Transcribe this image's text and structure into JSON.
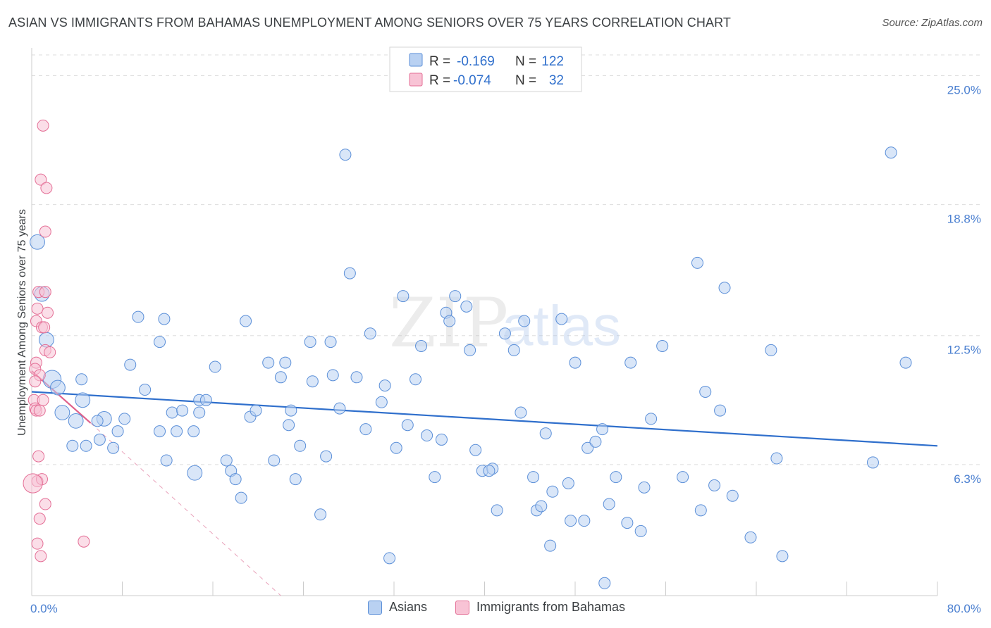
{
  "title": "ASIAN VS IMMIGRANTS FROM BAHAMAS UNEMPLOYMENT AMONG SENIORS OVER 75 YEARS CORRELATION CHART",
  "source": "Source: ZipAtlas.com",
  "watermark": {
    "zip": "ZIP",
    "atlas": "atlas"
  },
  "stats_legend": [
    {
      "r_label": "R =",
      "r_value": "-0.169",
      "n_label": "N =",
      "n_value": "122",
      "color": "#5b8fd8",
      "fill": "#b9d1f2"
    },
    {
      "r_label": "R =",
      "r_value": "-0.074",
      "n_label": "N =",
      "n_value": " 32",
      "color": "#e46f96",
      "fill": "#f8c3d5"
    }
  ],
  "bottom_legend": [
    {
      "label": "Asians",
      "fill": "#b9d1f2",
      "stroke": "#5b8fd8"
    },
    {
      "label": "Immigrants from Bahamas",
      "fill": "#f8c3d5",
      "stroke": "#e46f96"
    }
  ],
  "chart_data": {
    "type": "scatter",
    "ylabel": "Unemployment Among Seniors over 75 years",
    "xlabel": "",
    "xlim": [
      0,
      80
    ],
    "ylim": [
      0,
      26.2
    ],
    "x_tick_labels": {
      "min": "0.0%",
      "max": "80.0%"
    },
    "y_ticks": [
      {
        "value": 6.3,
        "label": "6.3%"
      },
      {
        "value": 12.5,
        "label": "12.5%"
      },
      {
        "value": 18.8,
        "label": "18.8%"
      },
      {
        "value": 25.0,
        "label": "25.0%"
      }
    ],
    "colors": {
      "asians": "#5b8fd8",
      "bahamas": "#e46f96",
      "asians_line": "#2f6fcc",
      "bahamas_line": "#e0608a"
    },
    "series": [
      {
        "name": "Asians",
        "trend": {
          "x": [
            0,
            80
          ],
          "y": [
            9.8,
            7.2
          ]
        },
        "points": [
          [
            0.5,
            17.0,
            1.3
          ],
          [
            0.9,
            14.5,
            1.3
          ],
          [
            1.3,
            12.3,
            1.3
          ],
          [
            1.8,
            10.4,
            1.6
          ],
          [
            4.4,
            10.4,
            1.0
          ],
          [
            2.3,
            10.0,
            1.3
          ],
          [
            4.5,
            9.4,
            1.3
          ],
          [
            2.7,
            8.8,
            1.3
          ],
          [
            6.4,
            8.5,
            1.3
          ],
          [
            3.9,
            8.4,
            1.3
          ],
          [
            5.8,
            8.4,
            1.0
          ],
          [
            10.0,
            9.9,
            1.0
          ],
          [
            8.7,
            11.1,
            1.0
          ],
          [
            11.3,
            12.2,
            1.0
          ],
          [
            9.4,
            13.4,
            1.0
          ],
          [
            11.7,
            13.3,
            1.0
          ],
          [
            12.4,
            8.8,
            1.0
          ],
          [
            13.3,
            8.9,
            1.0
          ],
          [
            14.3,
            7.9,
            1.0
          ],
          [
            8.2,
            8.5,
            1.0
          ],
          [
            11.3,
            7.9,
            1.0
          ],
          [
            12.8,
            7.9,
            1.0
          ],
          [
            7.6,
            7.9,
            1.0
          ],
          [
            6.0,
            7.5,
            1.0
          ],
          [
            7.2,
            7.1,
            1.0
          ],
          [
            3.6,
            7.2,
            1.0
          ],
          [
            4.8,
            7.2,
            1.0
          ],
          [
            14.8,
            9.4,
            1.0
          ],
          [
            15.4,
            9.4,
            1.0
          ],
          [
            14.8,
            8.8,
            1.0
          ],
          [
            16.2,
            11.0,
            1.0
          ],
          [
            11.9,
            6.5,
            1.0
          ],
          [
            14.4,
            5.9,
            1.3
          ],
          [
            17.2,
            6.5,
            1.0
          ],
          [
            17.6,
            6.0,
            1.0
          ],
          [
            18.0,
            5.6,
            1.0
          ],
          [
            18.5,
            4.7,
            1.0
          ],
          [
            18.9,
            13.2,
            1.0
          ],
          [
            19.3,
            8.6,
            1.0
          ],
          [
            19.8,
            8.9,
            1.0
          ],
          [
            20.9,
            11.2,
            1.0
          ],
          [
            21.4,
            6.5,
            1.0
          ],
          [
            22.0,
            10.5,
            1.0
          ],
          [
            22.4,
            11.2,
            1.0
          ],
          [
            22.7,
            8.2,
            1.0
          ],
          [
            22.9,
            8.9,
            1.0
          ],
          [
            23.3,
            5.6,
            1.0
          ],
          [
            23.7,
            7.2,
            1.0
          ],
          [
            24.6,
            12.2,
            1.0
          ],
          [
            24.8,
            10.3,
            1.0
          ],
          [
            25.5,
            3.9,
            1.0
          ],
          [
            26.0,
            6.7,
            1.0
          ],
          [
            26.4,
            12.2,
            1.0
          ],
          [
            26.6,
            10.6,
            1.0
          ],
          [
            27.2,
            9.0,
            1.0
          ],
          [
            27.7,
            21.2,
            1.0
          ],
          [
            28.1,
            15.5,
            1.0
          ],
          [
            28.7,
            10.5,
            1.0
          ],
          [
            29.5,
            8.0,
            1.0
          ],
          [
            29.9,
            12.6,
            1.0
          ],
          [
            30.9,
            9.3,
            1.0
          ],
          [
            31.2,
            10.1,
            1.0
          ],
          [
            31.6,
            1.8,
            1.0
          ],
          [
            32.2,
            7.1,
            1.0
          ],
          [
            32.8,
            14.4,
            1.0
          ],
          [
            33.2,
            8.2,
            1.0
          ],
          [
            33.9,
            10.4,
            1.0
          ],
          [
            34.4,
            12.0,
            1.0
          ],
          [
            34.9,
            7.7,
            1.0
          ],
          [
            35.6,
            5.7,
            1.0
          ],
          [
            36.2,
            7.5,
            1.0
          ],
          [
            36.6,
            13.6,
            1.0
          ],
          [
            36.9,
            13.2,
            1.0
          ],
          [
            37.4,
            14.4,
            1.0
          ],
          [
            38.4,
            13.9,
            1.0
          ],
          [
            38.7,
            11.8,
            1.0
          ],
          [
            39.2,
            7.0,
            1.0
          ],
          [
            39.8,
            6.0,
            1.0
          ],
          [
            40.7,
            6.1,
            1.0
          ],
          [
            41.1,
            4.1,
            1.0
          ],
          [
            40.4,
            6.0,
            1.0
          ],
          [
            41.8,
            12.6,
            1.0
          ],
          [
            42.6,
            11.8,
            1.0
          ],
          [
            43.2,
            8.8,
            1.0
          ],
          [
            43.5,
            13.2,
            1.0
          ],
          [
            44.3,
            5.7,
            1.0
          ],
          [
            44.6,
            4.1,
            1.0
          ],
          [
            45.0,
            4.3,
            1.0
          ],
          [
            45.4,
            7.8,
            1.0
          ],
          [
            45.8,
            2.4,
            1.0
          ],
          [
            46.0,
            5.0,
            1.0
          ],
          [
            46.8,
            13.3,
            1.0
          ],
          [
            47.4,
            5.4,
            1.0
          ],
          [
            47.6,
            3.6,
            1.0
          ],
          [
            48.0,
            11.2,
            1.0
          ],
          [
            48.8,
            3.6,
            1.0
          ],
          [
            49.1,
            7.1,
            1.0
          ],
          [
            49.8,
            7.4,
            1.0
          ],
          [
            50.4,
            8.0,
            1.0
          ],
          [
            50.6,
            0.6,
            1.0
          ],
          [
            51.0,
            4.4,
            1.0
          ],
          [
            51.6,
            5.7,
            1.0
          ],
          [
            52.6,
            3.5,
            1.0
          ],
          [
            52.9,
            11.2,
            1.0
          ],
          [
            53.8,
            3.1,
            1.0
          ],
          [
            54.1,
            5.2,
            1.0
          ],
          [
            54.7,
            8.5,
            1.0
          ],
          [
            55.7,
            12.0,
            1.0
          ],
          [
            57.5,
            5.7,
            1.0
          ],
          [
            58.8,
            16.0,
            1.0
          ],
          [
            59.1,
            4.1,
            1.0
          ],
          [
            59.5,
            9.8,
            1.0
          ],
          [
            60.3,
            5.3,
            1.0
          ],
          [
            60.8,
            8.9,
            1.0
          ],
          [
            61.2,
            14.8,
            1.0
          ],
          [
            61.9,
            4.8,
            1.0
          ],
          [
            63.5,
            2.8,
            1.0
          ],
          [
            65.3,
            11.8,
            1.0
          ],
          [
            65.8,
            6.6,
            1.0
          ],
          [
            66.3,
            1.9,
            1.0
          ],
          [
            74.3,
            6.4,
            1.0
          ],
          [
            75.9,
            21.3,
            1.0
          ],
          [
            77.2,
            11.2,
            1.0
          ]
        ]
      },
      {
        "name": "Immigrants from Bahamas",
        "trend": {
          "x": [
            0,
            5.2
          ],
          "y": [
            10.8,
            8.3
          ]
        },
        "trend_extension": {
          "x": [
            5.2,
            22.0
          ],
          "y": [
            8.3,
            0.0
          ]
        },
        "points": [
          [
            1.0,
            22.6,
            1.0
          ],
          [
            0.8,
            20.0,
            1.0
          ],
          [
            1.3,
            19.6,
            1.0
          ],
          [
            1.2,
            17.5,
            1.0
          ],
          [
            0.6,
            14.6,
            1.0
          ],
          [
            1.2,
            14.6,
            1.0
          ],
          [
            0.5,
            13.8,
            1.0
          ],
          [
            1.4,
            13.6,
            1.0
          ],
          [
            0.4,
            13.2,
            1.0
          ],
          [
            0.9,
            12.9,
            1.0
          ],
          [
            1.1,
            12.9,
            1.0
          ],
          [
            1.2,
            11.8,
            1.0
          ],
          [
            1.6,
            11.7,
            1.0
          ],
          [
            0.4,
            11.2,
            1.0
          ],
          [
            0.3,
            10.9,
            1.0
          ],
          [
            0.7,
            10.6,
            1.0
          ],
          [
            0.3,
            10.3,
            1.0
          ],
          [
            0.2,
            9.4,
            1.0
          ],
          [
            1.0,
            9.4,
            1.0
          ],
          [
            0.3,
            9.0,
            1.0
          ],
          [
            0.4,
            8.9,
            1.0
          ],
          [
            0.7,
            8.9,
            1.0
          ],
          [
            0.6,
            6.7,
            1.0
          ],
          [
            0.5,
            5.5,
            1.0
          ],
          [
            0.9,
            5.6,
            1.0
          ],
          [
            0.1,
            5.4,
            1.7
          ],
          [
            1.2,
            4.4,
            1.0
          ],
          [
            0.7,
            3.7,
            1.0
          ],
          [
            0.5,
            2.5,
            1.0
          ],
          [
            0.8,
            1.9,
            1.0
          ],
          [
            4.6,
            2.6,
            1.0
          ]
        ]
      }
    ]
  }
}
